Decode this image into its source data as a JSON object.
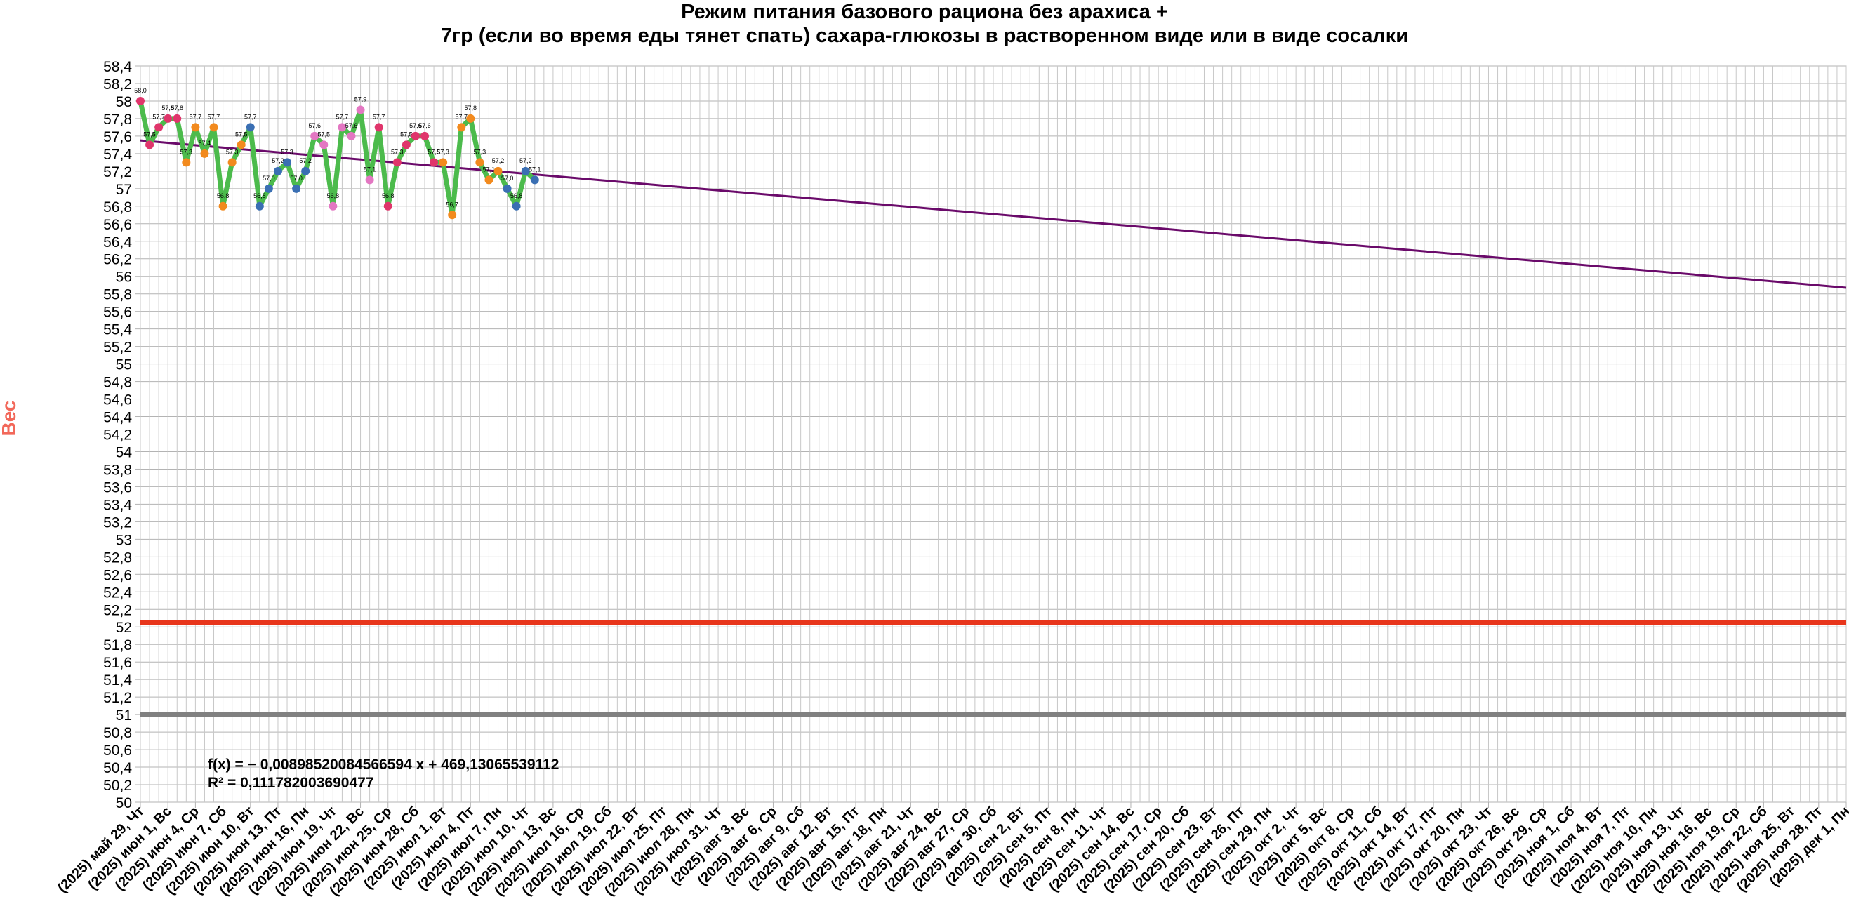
{
  "chart_data": {
    "type": "line",
    "title_lines": [
      "Режим питания базового рациона без арахиса +",
      "7гр (если во время еды тянет спать) сахара-глюкозы в растворенном виде или в виде сосалки"
    ],
    "ylabel": "Вес",
    "xlabel": "",
    "ylim": [
      50,
      58.4
    ],
    "ytick_step": 0.2,
    "grid": true,
    "x_categories": [
      "(2025) май 29, Чт",
      "(2025) июн 1, Вс",
      "(2025) июн 4, Ср",
      "(2025) июн 7, Сб",
      "(2025) июн 10, Вт",
      "(2025) июн 13, Пт",
      "(2025) июн 16, Пн",
      "(2025) июн 19, Чт",
      "(2025) июн 22, Вс",
      "(2025) июн 25, Ср",
      "(2025) июн 28, Сб",
      "(2025) июл 1, Вт",
      "(2025) июл 4, Пт",
      "(2025) июл 7, Пн",
      "(2025) июл 10, Чт",
      "(2025) июл 13, Вс",
      "(2025) июл 16, Ср",
      "(2025) июл 19, Сб",
      "(2025) июл 22, Вт",
      "(2025) июл 25, Пт",
      "(2025) июл 28, Пн",
      "(2025) июл 31, Чт",
      "(2025) авг 3, Вс",
      "(2025) авг 6, Ср",
      "(2025) авг 9, Сб",
      "(2025) авг 12, Вт",
      "(2025) авг 15, Пт",
      "(2025) авг 18, Пн",
      "(2025) авг 21, Чт",
      "(2025) авг 24, Вс",
      "(2025) авг 27, Ср",
      "(2025) авг 30, Сб",
      "(2025) сен 2, Вт",
      "(2025) сен 5, Пт",
      "(2025) сен 8, Пн",
      "(2025) сен 11, Чт",
      "(2025) сен 14, Вс",
      "(2025) сен 17, Ср",
      "(2025) сен 20, Сб",
      "(2025) сен 23, Вт",
      "(2025) сен 26, Пт",
      "(2025) сен 29, Пн",
      "(2025) окт 2, Чт",
      "(2025) окт 5, Вс",
      "(2025) окт 8, Ср",
      "(2025) окт 11, Сб",
      "(2025) окт 14, Вт",
      "(2025) окт 17, Пт",
      "(2025) окт 20, Пн",
      "(2025) окт 23, Чт",
      "(2025) окт 26, Вс",
      "(2025) окт 29, Ср",
      "(2025) ноя 1, Сб",
      "(2025) ноя 4, Вт",
      "(2025) ноя 7, Пт",
      "(2025) ноя 10, Пн",
      "(2025) ноя 13, Чт",
      "(2025) ноя 16, Вс",
      "(2025) ноя 19, Ср",
      "(2025) ноя 22, Сб",
      "(2025) ноя 25, Вт",
      "(2025) ноя 28, Пт",
      "(2025) дек 1, Пн"
    ],
    "x_range_days": [
      0,
      186
    ],
    "series": [
      {
        "type": "line",
        "color": "#4cbb4c",
        "points": [
          {
            "day": 0,
            "y": 58.0,
            "label": "58,0",
            "marker_color": "#e0356b"
          },
          {
            "day": 1,
            "y": 57.5,
            "label": "57,5",
            "marker_color": "#e0356b"
          },
          {
            "day": 2,
            "y": 57.7,
            "label": "57,7",
            "marker_color": "#e0356b"
          },
          {
            "day": 3,
            "y": 57.8,
            "label": "57,8",
            "marker_color": "#e0356b"
          },
          {
            "day": 4,
            "y": 57.8,
            "label": "57,8",
            "marker_color": "#e0356b"
          },
          {
            "day": 5,
            "y": 57.3,
            "label": "57,3",
            "marker_color": "#f28a1e"
          },
          {
            "day": 6,
            "y": 57.7,
            "label": "57,7",
            "marker_color": "#f28a1e"
          },
          {
            "day": 7,
            "y": 57.4,
            "label": "57,4",
            "marker_color": "#f28a1e"
          },
          {
            "day": 8,
            "y": 57.7,
            "label": "57,7",
            "marker_color": "#f28a1e"
          },
          {
            "day": 9,
            "y": 56.8,
            "label": "56,8",
            "marker_color": "#f28a1e"
          },
          {
            "day": 10,
            "y": 57.3,
            "label": "57,3",
            "marker_color": "#f28a1e"
          },
          {
            "day": 11,
            "y": 57.5,
            "label": "57,5",
            "marker_color": "#f28a1e"
          },
          {
            "day": 12,
            "y": 57.7,
            "label": "57,7",
            "marker_color": "#3a6fb3"
          },
          {
            "day": 13,
            "y": 56.8,
            "label": "56,8",
            "marker_color": "#3a6fb3"
          },
          {
            "day": 14,
            "y": 57.0,
            "label": "57,0",
            "marker_color": "#3a6fb3"
          },
          {
            "day": 15,
            "y": 57.2,
            "label": "57,2",
            "marker_color": "#3a6fb3"
          },
          {
            "day": 16,
            "y": 57.3,
            "label": "57,3",
            "marker_color": "#3a6fb3"
          },
          {
            "day": 17,
            "y": 57.0,
            "label": "57,0",
            "marker_color": "#3a6fb3"
          },
          {
            "day": 18,
            "y": 57.2,
            "label": "57,2",
            "marker_color": "#3a6fb3"
          },
          {
            "day": 19,
            "y": 57.6,
            "label": "57,6",
            "marker_color": "#e377c2"
          },
          {
            "day": 20,
            "y": 57.5,
            "label": "57,5",
            "marker_color": "#e377c2"
          },
          {
            "day": 21,
            "y": 56.8,
            "label": "56,8",
            "marker_color": "#e377c2"
          },
          {
            "day": 22,
            "y": 57.7,
            "label": "57,7",
            "marker_color": "#e377c2"
          },
          {
            "day": 23,
            "y": 57.6,
            "label": "57,6",
            "marker_color": "#e377c2"
          },
          {
            "day": 24,
            "y": 57.9,
            "label": "57,9",
            "marker_color": "#e377c2"
          },
          {
            "day": 25,
            "y": 57.1,
            "label": "57,1",
            "marker_color": "#e377c2"
          },
          {
            "day": 26,
            "y": 57.7,
            "label": "57,7",
            "marker_color": "#e0356b"
          },
          {
            "day": 27,
            "y": 56.8,
            "label": "56,8",
            "marker_color": "#e0356b"
          },
          {
            "day": 28,
            "y": 57.3,
            "label": "57,3",
            "marker_color": "#e0356b"
          },
          {
            "day": 29,
            "y": 57.5,
            "label": "57,5",
            "marker_color": "#e0356b"
          },
          {
            "day": 30,
            "y": 57.6,
            "label": "57,6",
            "marker_color": "#e0356b"
          },
          {
            "day": 31,
            "y": 57.6,
            "label": "57,6",
            "marker_color": "#e0356b"
          },
          {
            "day": 32,
            "y": 57.3,
            "label": "57,3",
            "marker_color": "#e0356b"
          },
          {
            "day": 33,
            "y": 57.3,
            "label": "57,3",
            "marker_color": "#f28a1e"
          },
          {
            "day": 34,
            "y": 56.7,
            "label": "56,7",
            "marker_color": "#f28a1e"
          },
          {
            "day": 35,
            "y": 57.7,
            "label": "57,7",
            "marker_color": "#f28a1e"
          },
          {
            "day": 36,
            "y": 57.8,
            "label": "57,8",
            "marker_color": "#f28a1e"
          },
          {
            "day": 37,
            "y": 57.3,
            "label": "57,3",
            "marker_color": "#f28a1e"
          },
          {
            "day": 38,
            "y": 57.1,
            "label": "57,1",
            "marker_color": "#f28a1e"
          },
          {
            "day": 39,
            "y": 57.2,
            "label": "57,2",
            "marker_color": "#f28a1e"
          },
          {
            "day": 40,
            "y": 57.0,
            "label": "57,0",
            "marker_color": "#3a6fb3"
          },
          {
            "day": 41,
            "y": 56.8,
            "label": "56,8",
            "marker_color": "#3a6fb3"
          },
          {
            "day": 42,
            "y": 57.2,
            "label": "57,2",
            "marker_color": "#3a6fb3"
          },
          {
            "day": 43,
            "y": 57.1,
            "label": "57,1",
            "marker_color": "#3a6fb3"
          }
        ]
      },
      {
        "type": "trendline",
        "color": "#6a0a6a",
        "day_start": 0,
        "day_end": 186,
        "y_start": 57.55,
        "y_end": 55.87
      },
      {
        "type": "hline",
        "color": "#e8361c",
        "y": 52.05
      },
      {
        "type": "hline",
        "color": "#808080",
        "y": 51.0
      }
    ],
    "regression_text": [
      "f(x) = − 0,00898520084566594 x + 469,13065539112",
      "R² = 0,111782003690477"
    ]
  }
}
